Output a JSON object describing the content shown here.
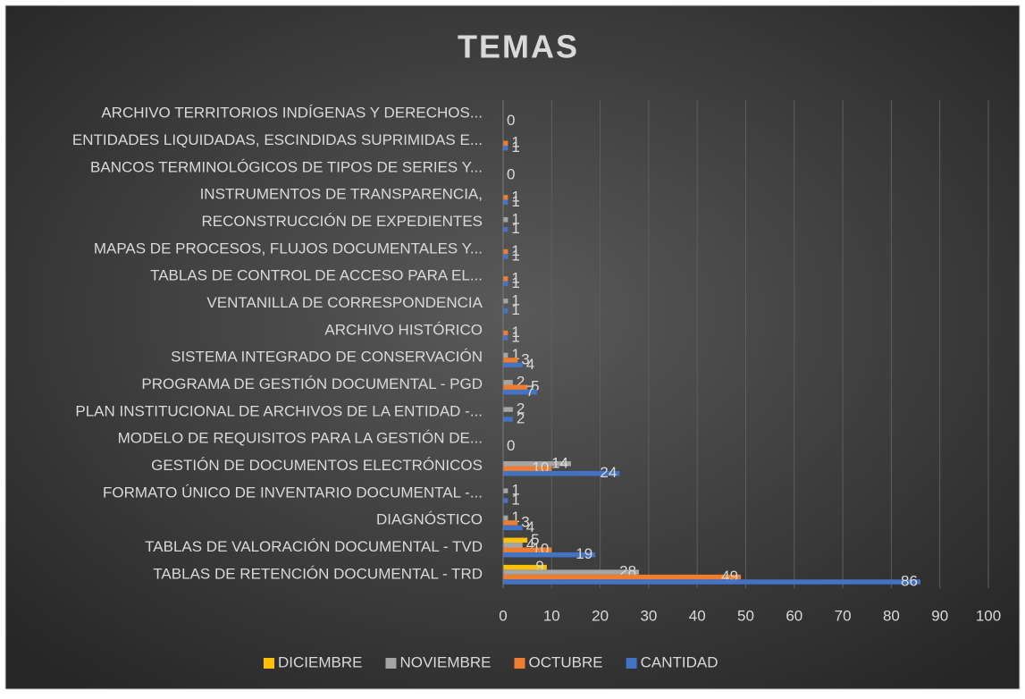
{
  "chart_data": {
    "type": "bar",
    "orientation": "horizontal",
    "title": "TEMAS",
    "categories": [
      "ARCHIVO TERRITORIOS INDÍGENAS Y DERECHOS...",
      "ENTIDADES LIQUIDADAS, ESCINDIDAS SUPRIMIDAS E...",
      "BANCOS TERMINOLÓGICOS DE TIPOS DE SERIES Y...",
      "INSTRUMENTOS DE TRANSPARENCIA,",
      "RECONSTRUCCIÓN DE EXPEDIENTES",
      "MAPAS DE PROCESOS, FLUJOS DOCUMENTALES Y...",
      "TABLAS DE CONTROL DE ACCESO PARA EL...",
      "VENTANILLA DE CORRESPONDENCIA",
      "ARCHIVO HISTÓRICO",
      "SISTEMA INTEGRADO DE CONSERVACIÓN",
      "PROGRAMA DE GESTIÓN DOCUMENTAL - PGD",
      "PLAN INSTITUCIONAL DE ARCHIVOS DE LA ENTIDAD -...",
      "MODELO DE REQUISITOS PARA LA GESTIÓN  DE...",
      "GESTIÓN DE DOCUMENTOS ELECTRÓNICOS",
      "FORMATO ÚNICO DE INVENTARIO DOCUMENTAL -...",
      "DIAGNÓSTICO",
      "TABLAS DE VALORACIÓN DOCUMENTAL - TVD",
      "TABLAS DE RETENCIÓN DOCUMENTAL - TRD"
    ],
    "series": [
      {
        "name": "DICIEMBRE",
        "color": "#ffc000",
        "values": [
          null,
          null,
          null,
          null,
          null,
          null,
          null,
          null,
          null,
          null,
          null,
          null,
          null,
          null,
          null,
          null,
          5,
          9
        ]
      },
      {
        "name": "NOVIEMBRE",
        "color": "#a5a5a5",
        "values": [
          null,
          null,
          null,
          null,
          1,
          null,
          null,
          1,
          null,
          1,
          2,
          2,
          null,
          14,
          1,
          1,
          4,
          28
        ]
      },
      {
        "name": "OCTUBRE",
        "color": "#ed7d31",
        "values": [
          null,
          1,
          null,
          1,
          null,
          1,
          1,
          null,
          1,
          3,
          5,
          null,
          null,
          10,
          null,
          3,
          10,
          49
        ]
      },
      {
        "name": "CANTIDAD",
        "color": "#4472c4",
        "values": [
          0,
          1,
          0,
          1,
          1,
          1,
          1,
          1,
          1,
          4,
          7,
          2,
          0,
          24,
          1,
          4,
          19,
          86
        ]
      }
    ],
    "xlim": [
      0,
      100
    ],
    "xticks": [
      0,
      10,
      20,
      30,
      40,
      50,
      60,
      70,
      80,
      90,
      100
    ],
    "grid": true,
    "legend": "bottom"
  }
}
